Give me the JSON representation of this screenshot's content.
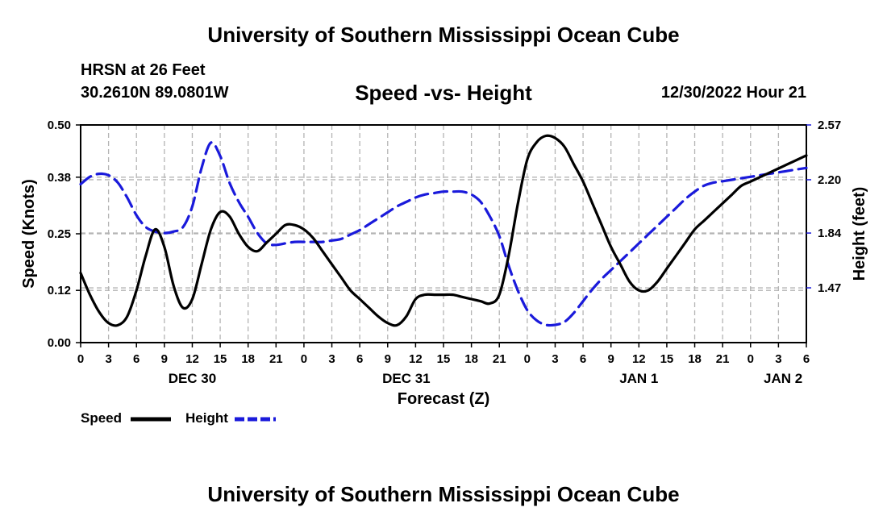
{
  "header": {
    "title": "University of Southern Mississippi Ocean Cube",
    "station": "HRSN at 26 Feet",
    "coordinates": "30.2610N  89.0801W",
    "datetime": "12/30/2022 Hour 21"
  },
  "footer": {
    "title": "University of Southern Mississippi Ocean Cube"
  },
  "chart_data": {
    "type": "line",
    "title": "Speed -vs- Height",
    "xlabel": "Forecast (Z)",
    "ylabel": "Speed (Knots)",
    "y2label": "Height (feet)",
    "xlim": [
      0,
      78
    ],
    "ylim": [
      0,
      0.5
    ],
    "y2lim": [
      1.1,
      2.57
    ],
    "x_ticks": [
      0,
      3,
      6,
      9,
      12,
      15,
      18,
      21,
      24,
      27,
      30,
      33,
      36,
      39,
      42,
      45,
      48,
      51,
      54,
      57,
      60,
      63,
      66,
      69,
      72,
      75,
      78
    ],
    "x_tick_labels": [
      "0",
      "3",
      "6",
      "9",
      "12",
      "15",
      "18",
      "21",
      "0",
      "3",
      "6",
      "9",
      "12",
      "15",
      "18",
      "21",
      "0",
      "3",
      "6",
      "9",
      "12",
      "15",
      "18",
      "21",
      "0",
      "3",
      "6"
    ],
    "date_labels": [
      {
        "label": "DEC 30",
        "x": 12
      },
      {
        "label": "DEC 31",
        "x": 35
      },
      {
        "label": "JAN 1",
        "x": 60
      },
      {
        "label": "JAN 2",
        "x": 75.5
      }
    ],
    "y_ticks": [
      0.0,
      0.12,
      0.25,
      0.38,
      0.5
    ],
    "y_tick_labels": [
      "0.00",
      "0.12",
      "0.25",
      "0.38",
      "0.50"
    ],
    "y2_ticks": [
      1.47,
      1.84,
      2.2,
      2.57
    ],
    "y2_tick_labels": [
      "1.47",
      "1.84",
      "2.20",
      "2.57"
    ],
    "grid": true,
    "legend": "bottom-left",
    "series": [
      {
        "name": "Speed",
        "axis": "left",
        "color": "#000000",
        "dash": "solid",
        "x": [
          0,
          1,
          2,
          3,
          4,
          5,
          6,
          7,
          8,
          9,
          10,
          11,
          12,
          13,
          14,
          15,
          16,
          17,
          18,
          19,
          20,
          21,
          22,
          23,
          24,
          25,
          26,
          27,
          28,
          29,
          30,
          31,
          32,
          33,
          34,
          35,
          36,
          37,
          38,
          39,
          40,
          41,
          42,
          43,
          44,
          45,
          46,
          47,
          48,
          49,
          50,
          51,
          52,
          53,
          54,
          55,
          56,
          57,
          58,
          59,
          60,
          61,
          62,
          63,
          64,
          65,
          66,
          67,
          68,
          69,
          70,
          71,
          72,
          73,
          74,
          75,
          76,
          77,
          78
        ],
        "values": [
          0.16,
          0.11,
          0.07,
          0.045,
          0.04,
          0.06,
          0.12,
          0.2,
          0.26,
          0.22,
          0.13,
          0.08,
          0.1,
          0.18,
          0.26,
          0.3,
          0.29,
          0.25,
          0.22,
          0.21,
          0.23,
          0.25,
          0.27,
          0.27,
          0.26,
          0.24,
          0.21,
          0.18,
          0.15,
          0.12,
          0.1,
          0.08,
          0.06,
          0.045,
          0.04,
          0.06,
          0.1,
          0.11,
          0.11,
          0.11,
          0.11,
          0.105,
          0.1,
          0.095,
          0.09,
          0.11,
          0.2,
          0.32,
          0.42,
          0.46,
          0.475,
          0.47,
          0.45,
          0.41,
          0.37,
          0.32,
          0.27,
          0.22,
          0.18,
          0.14,
          0.12,
          0.12,
          0.14,
          0.17,
          0.2,
          0.23,
          0.26,
          0.28,
          0.3,
          0.32,
          0.34,
          0.36,
          0.37,
          0.38,
          0.39,
          0.4,
          0.41,
          0.42,
          0.43
        ]
      },
      {
        "name": "Height",
        "axis": "right",
        "color": "#1a1adb",
        "dash": "dashed",
        "x": [
          0,
          1,
          2,
          3,
          4,
          5,
          6,
          7,
          8,
          9,
          10,
          11,
          12,
          13,
          14,
          15,
          16,
          17,
          18,
          19,
          20,
          21,
          22,
          23,
          24,
          25,
          26,
          27,
          28,
          29,
          30,
          31,
          32,
          33,
          34,
          35,
          36,
          37,
          38,
          39,
          40,
          41,
          42,
          43,
          44,
          45,
          46,
          47,
          48,
          49,
          50,
          51,
          52,
          53,
          54,
          55,
          56,
          57,
          58,
          59,
          60,
          61,
          62,
          63,
          64,
          65,
          66,
          67,
          68,
          69,
          70,
          71,
          72,
          73,
          74,
          75,
          76,
          77,
          78
        ],
        "values": [
          2.17,
          2.22,
          2.24,
          2.23,
          2.18,
          2.08,
          1.96,
          1.88,
          1.85,
          1.84,
          1.85,
          1.88,
          2.02,
          2.28,
          2.45,
          2.36,
          2.18,
          2.05,
          1.95,
          1.84,
          1.77,
          1.76,
          1.77,
          1.78,
          1.78,
          1.78,
          1.78,
          1.79,
          1.8,
          1.83,
          1.86,
          1.9,
          1.94,
          1.98,
          2.02,
          2.05,
          2.08,
          2.1,
          2.11,
          2.12,
          2.12,
          2.12,
          2.1,
          2.05,
          1.95,
          1.82,
          1.62,
          1.45,
          1.32,
          1.25,
          1.22,
          1.22,
          1.24,
          1.3,
          1.38,
          1.46,
          1.53,
          1.59,
          1.65,
          1.71,
          1.77,
          1.83,
          1.89,
          1.95,
          2.01,
          2.07,
          2.12,
          2.16,
          2.18,
          2.19,
          2.2,
          2.21,
          2.22,
          2.23,
          2.24,
          2.25,
          2.26,
          2.27,
          2.28
        ]
      }
    ]
  }
}
